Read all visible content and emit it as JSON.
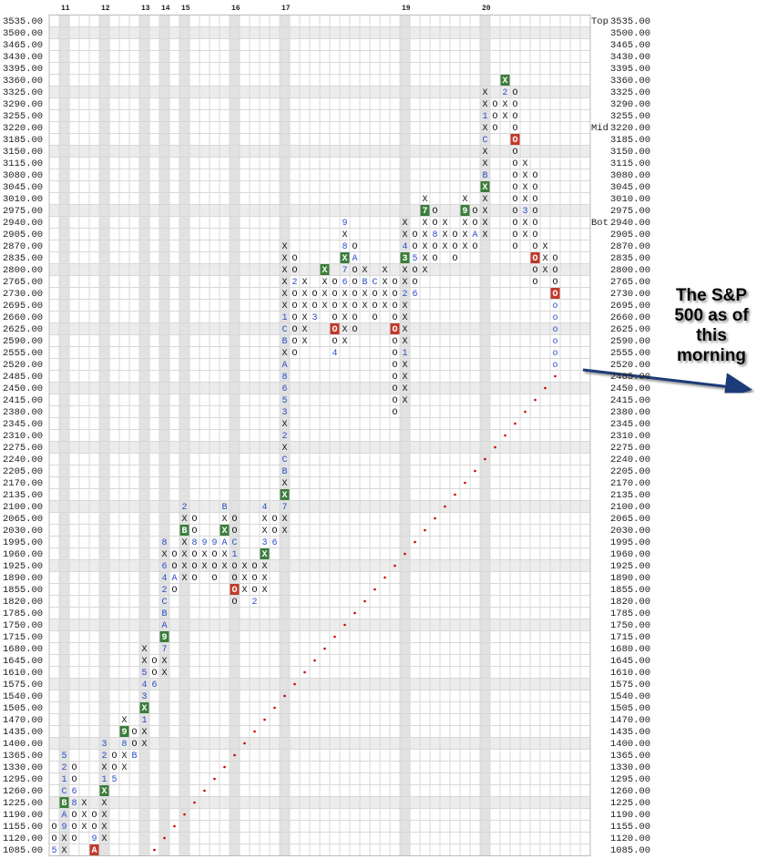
{
  "chart_data": {
    "type": "point_figure",
    "ylim": [
      1085,
      3535
    ],
    "yticks": [
      {
        "value": 3535,
        "label": "3535.00"
      },
      {
        "value": 3500,
        "label": "3500.00"
      },
      {
        "value": 3465,
        "label": "3465.00"
      },
      {
        "value": 3430,
        "label": "3430.00"
      },
      {
        "value": 3395,
        "label": "3395.00"
      },
      {
        "value": 3360,
        "label": "3360.00"
      },
      {
        "value": 3325,
        "label": "3325.00"
      },
      {
        "value": 3290,
        "label": "3290.00"
      },
      {
        "value": 3255,
        "label": "3255.00"
      },
      {
        "value": 3220,
        "label": "3220.00"
      },
      {
        "value": 3185,
        "label": "3185.00"
      },
      {
        "value": 3150,
        "label": "3150.00"
      },
      {
        "value": 3115,
        "label": "3115.00"
      },
      {
        "value": 3080,
        "label": "3080.00"
      },
      {
        "value": 3045,
        "label": "3045.00"
      },
      {
        "value": 3010,
        "label": "3010.00"
      },
      {
        "value": 2975,
        "label": "2975.00"
      },
      {
        "value": 2940,
        "label": "2940.00"
      },
      {
        "value": 2905,
        "label": "2905.00"
      },
      {
        "value": 2870,
        "label": "2870.00"
      },
      {
        "value": 2835,
        "label": "2835.00"
      },
      {
        "value": 2800,
        "label": "2800.00"
      },
      {
        "value": 2765,
        "label": "2765.00"
      },
      {
        "value": 2730,
        "label": "2730.00"
      },
      {
        "value": 2695,
        "label": "2695.00"
      },
      {
        "value": 2660,
        "label": "2660.00"
      },
      {
        "value": 2625,
        "label": "2625.00"
      },
      {
        "value": 2590,
        "label": "2590.00"
      },
      {
        "value": 2555,
        "label": "2555.00"
      },
      {
        "value": 2520,
        "label": "2520.00"
      },
      {
        "value": 2485,
        "label": "2485.00"
      },
      {
        "value": 2450,
        "label": "2450.00"
      },
      {
        "value": 2415,
        "label": "2415.00"
      },
      {
        "value": 2380,
        "label": "2380.00"
      },
      {
        "value": 2345,
        "label": "2345.00"
      },
      {
        "value": 2310,
        "label": "2310.00"
      },
      {
        "value": 2275,
        "label": "2275.00"
      },
      {
        "value": 2240,
        "label": "2240.00"
      },
      {
        "value": 2205,
        "label": "2205.00"
      },
      {
        "value": 2170,
        "label": "2170.00"
      },
      {
        "value": 2135,
        "label": "2135.00"
      },
      {
        "value": 2100,
        "label": "2100.00"
      },
      {
        "value": 2065,
        "label": "2065.00"
      },
      {
        "value": 2030,
        "label": "2030.00"
      },
      {
        "value": 1995,
        "label": "1995.00"
      },
      {
        "value": 1960,
        "label": "1960.00"
      },
      {
        "value": 1925,
        "label": "1925.00"
      },
      {
        "value": 1890,
        "label": "1890.00"
      },
      {
        "value": 1855,
        "label": "1855.00"
      },
      {
        "value": 1820,
        "label": "1820.00"
      },
      {
        "value": 1785,
        "label": "1785.00"
      },
      {
        "value": 1750,
        "label": "1750.00"
      },
      {
        "value": 1715,
        "label": "1715.00"
      },
      {
        "value": 1680,
        "label": "1680.00"
      },
      {
        "value": 1645,
        "label": "1645.00"
      },
      {
        "value": 1610,
        "label": "1610.00"
      },
      {
        "value": 1575,
        "label": "1575.00"
      },
      {
        "value": 1540,
        "label": "1540.00"
      },
      {
        "value": 1505,
        "label": "1505.00"
      },
      {
        "value": 1470,
        "label": "1470.00"
      },
      {
        "value": 1435,
        "label": "1435.00"
      },
      {
        "value": 1400,
        "label": "1400.00"
      },
      {
        "value": 1365,
        "label": "1365.00"
      },
      {
        "value": 1330,
        "label": "1330.00"
      },
      {
        "value": 1295,
        "label": "1295.00"
      },
      {
        "value": 1260,
        "label": "1260.00"
      },
      {
        "value": 1225,
        "label": "1225.00"
      },
      {
        "value": 1190,
        "label": "1190.00"
      },
      {
        "value": 1155,
        "label": "1155.00"
      },
      {
        "value": 1120,
        "label": "1120.00"
      },
      {
        "value": 1085,
        "label": "1085.00"
      }
    ],
    "side_labels": [
      {
        "price": 3535,
        "label": "Top"
      },
      {
        "price": 3220,
        "label": "Mid"
      },
      {
        "price": 2940,
        "label": "Bot"
      }
    ],
    "month_color": "#2b4fc8",
    "columns": [
      {
        "bottom": 1085,
        "cells": [
          "5",
          "O",
          "O"
        ]
      },
      {
        "bottom": 1085,
        "year": "11",
        "cells": [
          "X",
          "X",
          "9",
          "A",
          {
            "text": "B",
            "fill": "#3b7d3b"
          },
          "C",
          "1",
          "2",
          "5"
        ]
      },
      {
        "bottom": 1120,
        "cells": [
          "O",
          "O",
          "O",
          "8",
          "6",
          "O",
          "O"
        ]
      },
      {
        "bottom": 1155,
        "cells": [
          "X",
          "X",
          "X"
        ]
      },
      {
        "bottom": 1085,
        "cells": [
          {
            "text": "A",
            "fill": "#c0392b"
          },
          "9",
          "O",
          "O"
        ]
      },
      {
        "bottom": 1120,
        "year": "12",
        "cells": [
          "X",
          "X",
          "X",
          "X",
          {
            "text": "X",
            "fill": "#3b7d3b"
          },
          "1",
          "X",
          "2",
          "3"
        ]
      },
      {
        "bottom": 1295,
        "cells": [
          "5",
          "O",
          "O"
        ]
      },
      {
        "bottom": 1330,
        "cells": [
          "X",
          "X",
          "8",
          {
            "text": "9",
            "fill": "#3b7d3b"
          },
          "X"
        ]
      },
      {
        "bottom": 1365,
        "cells": [
          "B",
          "O",
          "O"
        ]
      },
      {
        "bottom": 1400,
        "year": "13",
        "cells": [
          "X",
          "X",
          "1",
          {
            "text": "X",
            "fill": "#3b7d3b"
          },
          "3",
          "4",
          "5",
          "X",
          "X"
        ]
      },
      {
        "bottom": 1575,
        "cells": [
          "6",
          "O",
          "O"
        ]
      },
      {
        "bottom": 1610,
        "year": "14",
        "cells": [
          "X",
          "X",
          "7",
          {
            "text": "9",
            "fill": "#3b7d3b"
          },
          "A",
          "B",
          "C",
          "2",
          "4",
          "6",
          "X",
          "8"
        ]
      },
      {
        "bottom": 1855,
        "cells": [
          "O",
          "A",
          "O",
          "O"
        ]
      },
      {
        "bottom": 1890,
        "year": "15",
        "cells": [
          "X",
          "X",
          "X",
          "X",
          {
            "text": "B",
            "fill": "#3b7d3b"
          },
          "X",
          "2"
        ]
      },
      {
        "bottom": 1890,
        "cells": [
          "O",
          "O",
          "O",
          "8",
          "O",
          "O"
        ]
      },
      {
        "bottom": 1925,
        "cells": [
          "X",
          "X",
          "9"
        ]
      },
      {
        "bottom": 1890,
        "cells": [
          "O",
          "O",
          "O",
          "9"
        ]
      },
      {
        "bottom": 1925,
        "cells": [
          "X",
          "X",
          "A",
          {
            "text": "X",
            "fill": "#3b7d3b"
          },
          "X",
          "B"
        ]
      },
      {
        "bottom": 1820,
        "year": "16",
        "cells": [
          "O",
          {
            "text": "O",
            "fill": "#c0392b"
          },
          "O",
          "O",
          "1",
          "C",
          "O",
          "O"
        ]
      },
      {
        "bottom": 1855,
        "cells": [
          "X",
          "X",
          "X"
        ]
      },
      {
        "bottom": 1820,
        "cells": [
          "2",
          "O",
          "O",
          "O"
        ]
      },
      {
        "bottom": 1855,
        "cells": [
          "X",
          "X",
          "X",
          {
            "text": "X",
            "fill": "#3b7d3b"
          },
          "3",
          "X",
          "X",
          "4"
        ]
      },
      {
        "bottom": 1995,
        "cells": [
          "6",
          "O",
          "O"
        ]
      },
      {
        "bottom": 2030,
        "year": "17",
        "cells": [
          "X",
          "X",
          "7",
          {
            "text": "X",
            "fill": "#3b7d3b"
          },
          "X",
          "B",
          "C",
          "X",
          "2",
          "X",
          "3",
          "5",
          "6",
          "8",
          "A",
          "X",
          "B",
          "C",
          "1",
          "X",
          "X",
          "X",
          "X",
          "X",
          "X"
        ]
      },
      {
        "bottom": 2555,
        "cells": [
          "O",
          "O",
          "O",
          "O",
          "O",
          "O",
          "2",
          "O",
          "O"
        ]
      },
      {
        "bottom": 2590,
        "cells": [
          "X",
          "X",
          "X",
          "X",
          "X",
          "X"
        ]
      },
      {
        "bottom": 2660,
        "cells": [
          "3",
          "O",
          "O"
        ]
      },
      {
        "bottom": 2695,
        "cells": [
          "X",
          "X",
          "X",
          {
            "text": "X",
            "fill": "#3b7d3b"
          }
        ]
      },
      {
        "bottom": 2555,
        "cells": [
          "4",
          "O",
          {
            "text": "O",
            "fill": "#c0392b"
          },
          "O",
          "O",
          "O",
          "O"
        ]
      },
      {
        "bottom": 2590,
        "cells": [
          "X",
          "X",
          "X",
          "X",
          "X",
          "6",
          "7",
          {
            "text": "X",
            "fill": "#3b7d3b"
          },
          "8",
          "X",
          "9"
        ]
      },
      {
        "bottom": 2625,
        "cells": [
          "O",
          "O",
          "O",
          "O",
          "O",
          "O",
          "A",
          "O"
        ]
      },
      {
        "bottom": 2695,
        "cells": [
          "X",
          "X",
          "B",
          "X"
        ]
      },
      {
        "bottom": 2660,
        "cells": [
          "O",
          "O",
          "O",
          "C"
        ]
      },
      {
        "bottom": 2695,
        "cells": [
          "X",
          "X",
          "X",
          "X"
        ]
      },
      {
        "bottom": 2380,
        "cells": [
          "O",
          "O",
          "O",
          "O",
          "O",
          "O",
          "O",
          {
            "text": "O",
            "fill": "#c0392b"
          },
          "O",
          "O",
          "O",
          "O"
        ]
      },
      {
        "bottom": 2415,
        "year": "19",
        "cells": [
          "X",
          "X",
          "X",
          "X",
          "1",
          "X",
          "X",
          "X",
          "X",
          "2",
          "X",
          "X",
          {
            "text": "3",
            "fill": "#3b7d3b"
          },
          "4",
          "X",
          "X"
        ]
      },
      {
        "bottom": 2730,
        "cells": [
          "6",
          "O",
          "O",
          "5",
          "O",
          "O"
        ]
      },
      {
        "bottom": 2800,
        "cells": [
          "X",
          "X",
          "X",
          "X",
          "X",
          {
            "text": "7",
            "fill": "#3b7d3b"
          },
          "X"
        ]
      },
      {
        "bottom": 2835,
        "cells": [
          "O",
          "O",
          "8",
          "O",
          "O"
        ]
      },
      {
        "bottom": 2870,
        "cells": [
          "X",
          "X",
          "X"
        ]
      },
      {
        "bottom": 2835,
        "cells": [
          "O",
          "O",
          "O"
        ]
      },
      {
        "bottom": 2870,
        "cells": [
          "X",
          "X",
          "X",
          {
            "text": "9",
            "fill": "#3b7d3b"
          },
          "X"
        ]
      },
      {
        "bottom": 2870,
        "cells": [
          "O",
          "A",
          "O",
          "O"
        ]
      },
      {
        "bottom": 2905,
        "year": "20",
        "cells": [
          "X",
          "X",
          "X",
          "X",
          {
            "text": "X",
            "fill": "#3b7d3b"
          },
          "B",
          "X",
          "X",
          "C",
          "X",
          "1",
          "X",
          "X"
        ]
      },
      {
        "bottom": 3220,
        "cells": [
          "O",
          "O",
          "O"
        ]
      },
      {
        "bottom": 3255,
        "cells": [
          "X",
          "X",
          "2",
          {
            "text": "X",
            "fill": "#3b7d3b"
          }
        ]
      },
      {
        "bottom": 2870,
        "cells": [
          "O",
          "O",
          "O",
          "O",
          "O",
          "O",
          "O",
          "O",
          "O",
          {
            "text": "O",
            "fill": "#c0392b"
          },
          "O",
          "O",
          "O",
          "O"
        ]
      },
      {
        "bottom": 2905,
        "cells": [
          "X",
          "X",
          "3",
          "X",
          "X",
          "X",
          "X"
        ]
      },
      {
        "bottom": 2765,
        "cells": [
          "O",
          "O",
          {
            "text": "O",
            "fill": "#c0392b"
          },
          "O",
          "O",
          "O",
          "O",
          "O",
          "O",
          "O"
        ]
      },
      {
        "bottom": 2800,
        "cells": [
          "X",
          "X",
          "X"
        ]
      },
      {
        "bottom": 2520,
        "cells": [
          "o",
          "o",
          "o",
          "o",
          "o",
          "o",
          {
            "text": "O",
            "fill": "#c0392b"
          },
          "O",
          "O",
          "O"
        ]
      }
    ],
    "trendline": {
      "color": "#cc0000",
      "from": [
        10,
        1085
      ],
      "to": [
        50,
        2485
      ]
    },
    "annotation": {
      "lines": [
        "The S&P",
        "500 as of",
        "this",
        "morning"
      ]
    }
  }
}
